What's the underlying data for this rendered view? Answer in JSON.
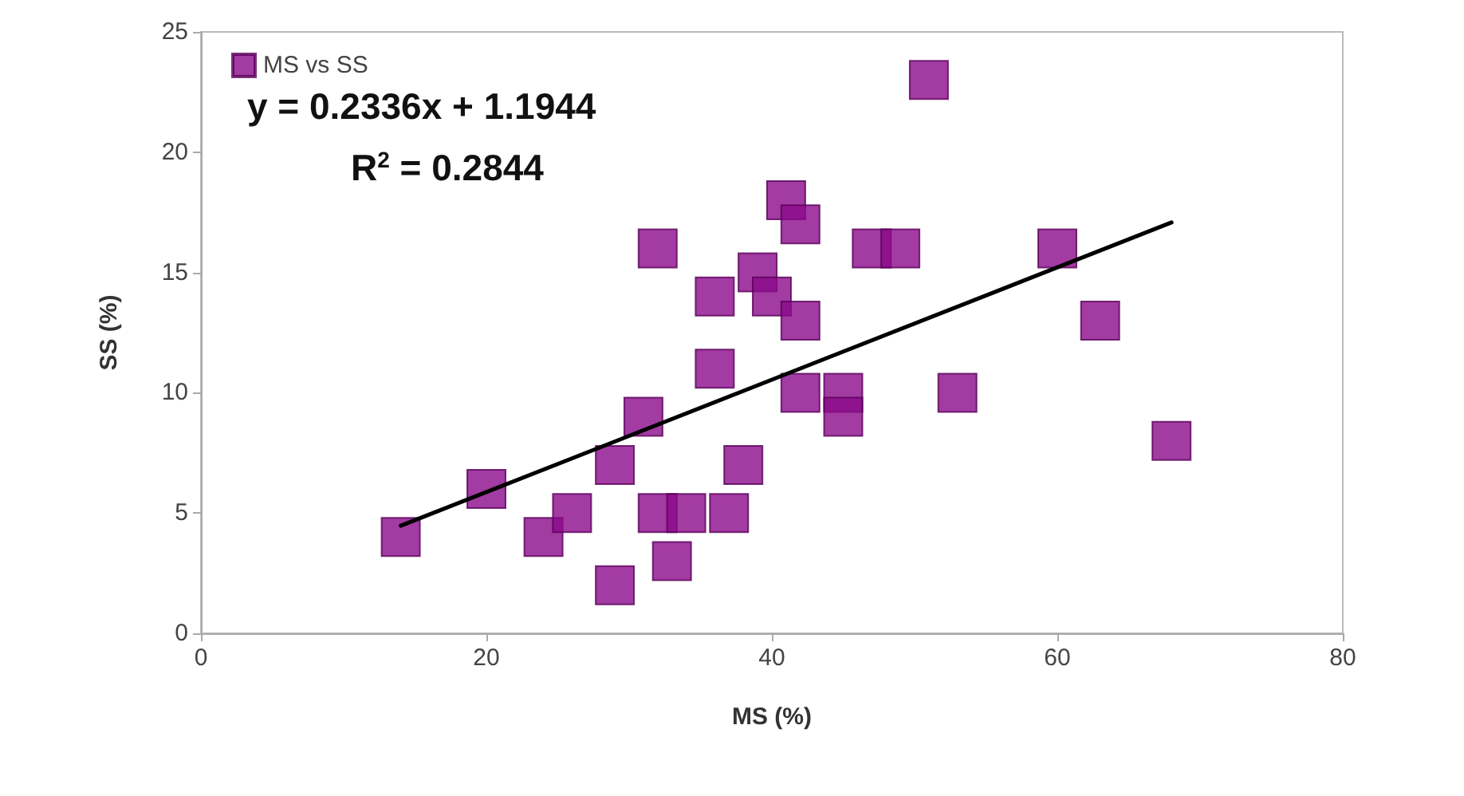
{
  "chart_data": {
    "type": "scatter",
    "xlabel": "MS (%)",
    "ylabel": "SS (%)",
    "xlim": [
      0,
      80
    ],
    "xticks": [
      0,
      20,
      40,
      60,
      80
    ],
    "ylim": [
      0,
      25
    ],
    "yticks": [
      0,
      5,
      10,
      15,
      20,
      25
    ],
    "grid": false,
    "legend": "top left",
    "marker": "square",
    "annotations": [
      "y = 0.2336x + 1.1944",
      "R$^{2}$ = 0.2844"
    ],
    "series": [
      {
        "name": "MS vs SS",
        "color": "#8b0a8b",
        "x": [
          14,
          20,
          24,
          26,
          29,
          29,
          31,
          32,
          32,
          33,
          34,
          36,
          36,
          37,
          38,
          39,
          40,
          41,
          42,
          42,
          42,
          45,
          45,
          47,
          49,
          51,
          53,
          60,
          63,
          68
        ],
        "values": [
          4,
          6,
          4,
          5,
          2,
          7,
          9,
          16,
          5,
          3,
          5,
          14,
          11,
          5,
          7,
          15,
          14,
          18,
          17,
          13,
          10,
          10,
          9,
          16,
          16,
          23,
          10,
          16,
          13,
          8
        ]
      },
      {
        "type": "line",
        "color": "#000000",
        "marker": "none",
        "line_style": "solid",
        "x": [
          14,
          68
        ],
        "values": [
          4.47,
          17.08
        ]
      }
    ]
  }
}
